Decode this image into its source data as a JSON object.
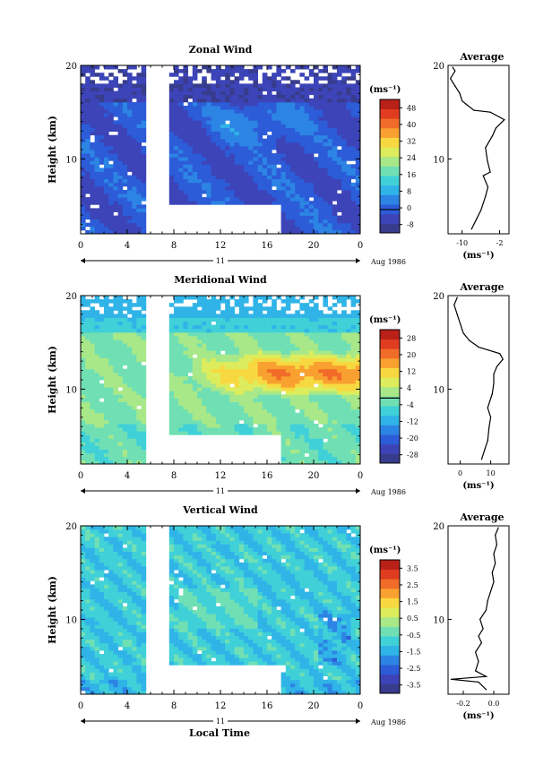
{
  "page": {
    "bottom_label": "Local Time"
  },
  "colors": {
    "axis": "#000000",
    "background": "#ffffff"
  },
  "colormap": [
    "#383c8c",
    "#3c44b8",
    "#2c5cd8",
    "#2c84e4",
    "#30b4e8",
    "#40d0d8",
    "#70e0b4",
    "#a8e888",
    "#dcec5c",
    "#f8d840",
    "#f8a030",
    "#f06c28",
    "#e03c20",
    "#b82018"
  ],
  "chart_data": [
    {
      "type": "heatmap",
      "title": "Zonal Wind",
      "ylabel": "Height (km)",
      "xlim": [
        0,
        24
      ],
      "ylim": [
        2,
        20
      ],
      "x_ticks": [
        "0",
        "4",
        "8",
        "12",
        "16",
        "20",
        "0"
      ],
      "y_ticks": [
        "10",
        "20"
      ],
      "date_day": "11",
      "date_label": "Aug 1986",
      "colorbar": {
        "unit": "(ms⁻¹)",
        "labels": [
          "48",
          "40",
          "32",
          "24",
          "16",
          "8",
          "0",
          "-8"
        ]
      },
      "profile": {
        "title": "Average",
        "unit": "(ms⁻¹)",
        "x_ticks": [
          "-10",
          "-2"
        ],
        "y_ticks": [
          "10",
          "20"
        ],
        "xlim": [
          -13,
          0
        ],
        "points": [
          [
            -8,
            2.5
          ],
          [
            -7,
            3.5
          ],
          [
            -6,
            4.5
          ],
          [
            -5,
            6
          ],
          [
            -4.5,
            7
          ],
          [
            -5.5,
            8.2
          ],
          [
            -4,
            8.6
          ],
          [
            -4.6,
            9.8
          ],
          [
            -5,
            11.2
          ],
          [
            -3.5,
            12.5
          ],
          [
            -2.8,
            13.3
          ],
          [
            -1,
            14.2
          ],
          [
            -4,
            15
          ],
          [
            -7.5,
            15.2
          ],
          [
            -9,
            15.8
          ],
          [
            -10,
            16.2
          ],
          [
            -10.5,
            17
          ],
          [
            -11.5,
            17.8
          ],
          [
            -12.5,
            18.6
          ],
          [
            -11.5,
            19.4
          ],
          [
            -12,
            19.8
          ]
        ]
      }
    },
    {
      "type": "heatmap",
      "title": "Meridional Wind",
      "ylabel": "Height (km)",
      "xlim": [
        0,
        24
      ],
      "ylim": [
        2,
        20
      ],
      "x_ticks": [
        "0",
        "4",
        "8",
        "12",
        "16",
        "20",
        "0"
      ],
      "y_ticks": [
        "10",
        "20"
      ],
      "date_day": "11",
      "date_label": "Aug 1986",
      "colorbar": {
        "unit": "(ms⁻¹)",
        "labels": [
          "28",
          "20",
          "12",
          "4",
          "-4",
          "-12",
          "-20",
          "-28"
        ]
      },
      "profile": {
        "title": "Average",
        "unit": "(ms⁻¹)",
        "x_ticks": [
          "0",
          "10"
        ],
        "y_ticks": [
          "10",
          "20"
        ],
        "xlim": [
          -4,
          16
        ],
        "points": [
          [
            7,
            2.5
          ],
          [
            8,
            3.5
          ],
          [
            9,
            4.5
          ],
          [
            9.5,
            6
          ],
          [
            10,
            7
          ],
          [
            9,
            8
          ],
          [
            10.5,
            9.5
          ],
          [
            11,
            10.6
          ],
          [
            11,
            11.6
          ],
          [
            12,
            12.4
          ],
          [
            14,
            13.2
          ],
          [
            13,
            13.8
          ],
          [
            6,
            14.5
          ],
          [
            3,
            15.2
          ],
          [
            1,
            16
          ],
          [
            0,
            17
          ],
          [
            -1,
            18
          ],
          [
            -2,
            19
          ],
          [
            -1,
            19.8
          ]
        ]
      }
    },
    {
      "type": "heatmap",
      "title": "Vertical Wind",
      "ylabel": "Height (km)",
      "xlim": [
        0,
        24
      ],
      "ylim": [
        2,
        20
      ],
      "x_ticks": [
        "0",
        "4",
        "8",
        "12",
        "16",
        "20",
        "0"
      ],
      "y_ticks": [
        "10",
        "20"
      ],
      "date_day": "11",
      "date_label": "Aug 1986",
      "colorbar": {
        "unit": "(ms⁻¹)",
        "labels": [
          "3.5",
          "2.5",
          "1.5",
          "0.5",
          "-0.5",
          "-1.5",
          "-2.5",
          "-3.5"
        ]
      },
      "profile": {
        "title": "Average",
        "unit": "(ms⁻¹)",
        "x_ticks": [
          "-0.2",
          "0.0"
        ],
        "y_ticks": [
          "10",
          "20"
        ],
        "xlim": [
          -0.3,
          0.1
        ],
        "points": [
          [
            -0.05,
            2.5
          ],
          [
            -0.1,
            3.3
          ],
          [
            -0.28,
            3.6
          ],
          [
            -0.05,
            3.9
          ],
          [
            -0.12,
            4.5
          ],
          [
            -0.1,
            5.5
          ],
          [
            -0.12,
            6.5
          ],
          [
            -0.08,
            7.5
          ],
          [
            -0.1,
            8.2
          ],
          [
            -0.07,
            9
          ],
          [
            -0.09,
            10
          ],
          [
            -0.05,
            11
          ],
          [
            -0.04,
            12
          ],
          [
            -0.02,
            13
          ],
          [
            0.0,
            14
          ],
          [
            -0.01,
            15
          ],
          [
            0.01,
            16
          ],
          [
            0.0,
            17
          ],
          [
            0.02,
            18
          ],
          [
            0.01,
            19
          ],
          [
            0.03,
            19.8
          ]
        ]
      }
    }
  ]
}
